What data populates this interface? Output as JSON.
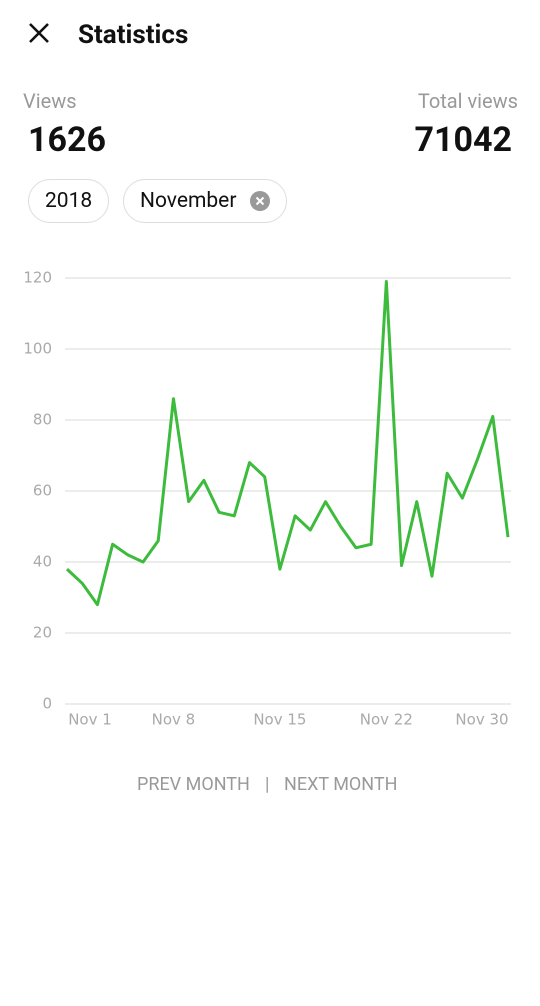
{
  "header": {
    "title": "Statistics"
  },
  "stats": {
    "views_label": "Views",
    "views": 1626,
    "total_label": "Total views",
    "total": 71042
  },
  "filters": [
    "2018",
    "November"
  ],
  "chart_data": {
    "type": "line",
    "categories": [
      "Nov 1",
      null,
      null,
      null,
      null,
      null,
      null,
      "Nov 8",
      null,
      null,
      null,
      null,
      null,
      null,
      "Nov 15",
      null,
      null,
      null,
      null,
      null,
      null,
      "Nov 22",
      null,
      null,
      null,
      null,
      null,
      null,
      null,
      "Nov 30"
    ],
    "values": [
      38,
      34,
      28,
      45,
      42,
      40,
      46,
      86,
      57,
      63,
      54,
      53,
      68,
      64,
      38,
      53,
      49,
      57,
      50,
      44,
      45,
      119,
      39,
      57,
      36,
      65,
      58,
      69,
      81,
      47
    ],
    "color": "#3dbb3d",
    "ylim": [
      0,
      120
    ],
    "yticks": [
      0,
      20,
      40,
      60,
      80,
      100,
      120
    ],
    "grid": true
  },
  "navigation": {
    "prev": "PREV MONTH",
    "separator": "|",
    "next": "NEXT MONTH"
  }
}
